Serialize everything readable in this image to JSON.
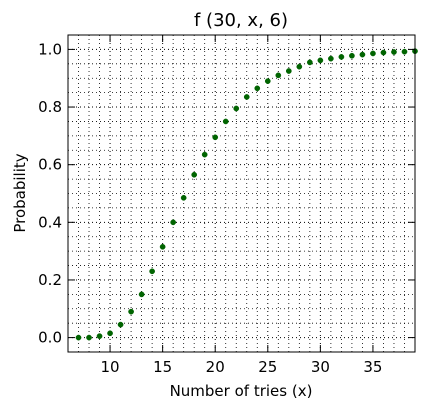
{
  "chart_data": {
    "type": "scatter",
    "title": "f (30, x, 6)",
    "xlabel": "Number of tries (x)",
    "ylabel": "Probability",
    "xlim": [
      6,
      39
    ],
    "ylim": [
      -0.05,
      1.05
    ],
    "xticks": [
      10,
      15,
      20,
      25,
      30,
      35
    ],
    "yticks": [
      0.0,
      0.2,
      0.4,
      0.6,
      0.8,
      1.0
    ],
    "xtick_labels": [
      "10",
      "15",
      "20",
      "25",
      "30",
      "35"
    ],
    "ytick_labels": [
      "0.0",
      "0.2",
      "0.4",
      "0.6",
      "0.8",
      "1.0"
    ],
    "grid": "on",
    "marker_color": "#006400",
    "x": [
      7,
      8,
      9,
      10,
      11,
      12,
      13,
      14,
      15,
      16,
      17,
      18,
      19,
      20,
      21,
      22,
      23,
      24,
      25,
      26,
      27,
      28,
      29,
      30,
      31,
      32,
      33,
      34,
      35,
      36,
      37,
      38,
      39
    ],
    "y": [
      0.0,
      0.0,
      0.005,
      0.015,
      0.045,
      0.09,
      0.15,
      0.23,
      0.315,
      0.4,
      0.485,
      0.565,
      0.635,
      0.695,
      0.75,
      0.795,
      0.835,
      0.865,
      0.89,
      0.91,
      0.925,
      0.94,
      0.955,
      0.962,
      0.968,
      0.974,
      0.978,
      0.982,
      0.986,
      0.989,
      0.991,
      0.992,
      0.994
    ]
  }
}
